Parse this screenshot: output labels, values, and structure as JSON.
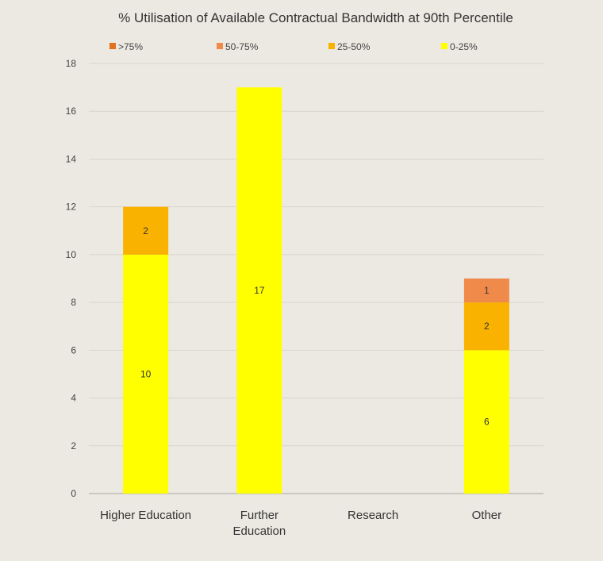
{
  "chart_data": {
    "type": "bar",
    "stacked": true,
    "title": "% Utilisation of Available Contractual Bandwidth at 90th Percentile",
    "categories": [
      [
        "Higher Education"
      ],
      [
        "Further",
        "Education"
      ],
      [
        "Research"
      ],
      [
        "Other"
      ]
    ],
    "series": [
      {
        "name": "0-25%",
        "color": "#ffff00",
        "values": [
          10,
          17,
          0,
          6
        ]
      },
      {
        "name": "25-50%",
        "color": "#f9b200",
        "values": [
          2,
          0,
          0,
          2
        ]
      },
      {
        "name": "50-75%",
        "color": "#f08a4b",
        "values": [
          0,
          0,
          0,
          1
        ]
      },
      {
        "name": ">75%",
        "color": "#e2711d",
        "values": [
          0,
          0,
          0,
          0
        ]
      }
    ],
    "legend_order": [
      ">75%",
      "50-75%",
      "25-50%",
      "0-25%"
    ],
    "legend_position": "top",
    "yticks": [
      0,
      2,
      4,
      6,
      8,
      10,
      12,
      14,
      16,
      18
    ],
    "ylim": [
      0,
      18
    ],
    "grid": true,
    "xlabel": "",
    "ylabel": ""
  }
}
